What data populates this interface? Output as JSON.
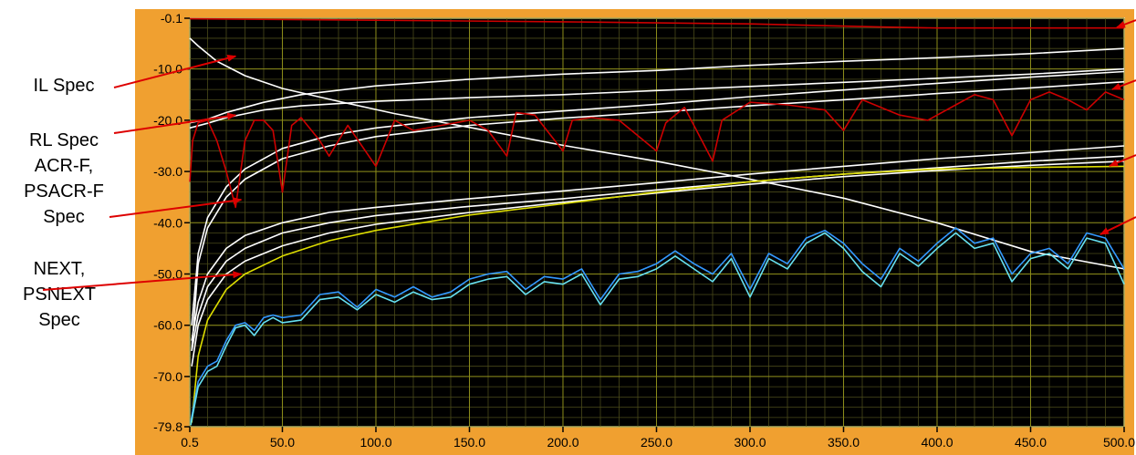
{
  "chart_data": {
    "type": "line",
    "title": "",
    "xlabel": "",
    "ylabel": "",
    "xlim": [
      0.5,
      500.0
    ],
    "ylim": [
      -79.8,
      -0.1
    ],
    "xticks": [
      "0.5",
      "50.0",
      "100.0",
      "150.0",
      "200.0",
      "250.0",
      "300.0",
      "350.0",
      "400.0",
      "450.0",
      "500.0"
    ],
    "yticks": [
      "-0.1",
      "-10.0",
      "-20.0",
      "-30.0",
      "-40.0",
      "-50.0",
      "-60.0",
      "-70.0",
      "-79.8"
    ],
    "annotations": [
      {
        "label": "IL Spec",
        "target": [
          25,
          -7.5
        ]
      },
      {
        "label": "RL Spec",
        "target": [
          25,
          -19.0
        ]
      },
      {
        "label": "ACR-F,\nPSACR-F\nSpec",
        "target": [
          28,
          -35.5
        ]
      },
      {
        "label": "NEXT,\nPSNEXT\nSpec",
        "target": [
          28,
          -50.0
        ]
      }
    ],
    "series": [
      {
        "color": "#ffffff",
        "x": [
          0.5,
          5,
          15,
          30,
          50,
          80,
          110,
          150,
          200,
          250,
          300,
          350,
          400,
          450,
          500
        ],
        "values": [
          -4.0,
          -5.5,
          -8.5,
          -11.3,
          -13.8,
          -16.3,
          -18.7,
          -21.4,
          -24.9,
          -28.0,
          -31.5,
          -35.2,
          -40.0,
          -45.6,
          -49.0
        ]
      },
      {
        "color": "#cc0000",
        "x": [
          0.5,
          100,
          200,
          300,
          370,
          400,
          500
        ],
        "values": [
          -0.2,
          -0.5,
          -0.8,
          -1.2,
          -1.8,
          -2.0,
          -2.0
        ]
      },
      {
        "color": "#ffffff",
        "x": [
          0.5,
          10,
          20,
          40,
          60,
          100,
          150,
          200,
          250,
          300,
          350,
          400,
          450,
          500
        ],
        "values": [
          -20.5,
          -19.8,
          -18.5,
          -16.5,
          -15.0,
          -13.3,
          -12.0,
          -11.0,
          -10.3,
          -9.3,
          -8.5,
          -7.8,
          -7.0,
          -6.0
        ]
      },
      {
        "color": "#ffffff",
        "x": [
          0.5,
          10,
          20,
          40,
          60,
          100,
          150,
          200,
          250,
          300,
          350,
          400,
          450,
          500
        ],
        "values": [
          -21.5,
          -20.6,
          -19.5,
          -18.0,
          -17.2,
          -16.3,
          -15.6,
          -15.0,
          -14.2,
          -13.4,
          -12.6,
          -11.8,
          -11.0,
          -10.0
        ]
      },
      {
        "color": "#ffffff",
        "x": [
          1.5,
          5,
          10,
          20,
          30,
          50,
          75,
          100,
          150,
          200,
          250,
          300,
          350,
          400,
          450,
          500
        ],
        "values": [
          -60.0,
          -46.0,
          -39.0,
          -33.0,
          -29.5,
          -25.5,
          -23.0,
          -21.5,
          -19.5,
          -18.2,
          -16.9,
          -15.4,
          -14.1,
          -12.8,
          -11.6,
          -10.5
        ]
      },
      {
        "color": "#ffffff",
        "x": [
          1.5,
          5,
          10,
          20,
          30,
          50,
          75,
          100,
          150,
          200,
          250,
          300,
          350,
          400,
          450,
          500
        ],
        "values": [
          -65.0,
          -48.0,
          -41.0,
          -35.0,
          -31.5,
          -27.5,
          -25.0,
          -23.2,
          -21.0,
          -19.6,
          -18.4,
          -17.2,
          -16.0,
          -14.8,
          -13.7,
          -12.5
        ]
      },
      {
        "color": "#ffffff",
        "x": [
          1.5,
          5,
          10,
          20,
          30,
          50,
          75,
          100,
          150,
          200,
          250,
          300,
          350,
          400,
          450,
          500
        ],
        "values": [
          -63.0,
          -55.5,
          -50.0,
          -45.0,
          -42.5,
          -40.0,
          -38.0,
          -37.0,
          -35.3,
          -33.8,
          -32.2,
          -30.5,
          -29.0,
          -27.5,
          -26.3,
          -25.0
        ]
      },
      {
        "color": "#ffffff",
        "x": [
          1.5,
          5,
          10,
          20,
          30,
          50,
          75,
          100,
          150,
          200,
          250,
          300,
          350,
          400,
          450,
          500
        ],
        "values": [
          -65.0,
          -58.0,
          -52.5,
          -47.5,
          -45.0,
          -42.0,
          -40.0,
          -38.6,
          -36.8,
          -35.3,
          -33.6,
          -32.0,
          -30.5,
          -29.3,
          -28.0,
          -27.0
        ]
      },
      {
        "color": "#ffffff",
        "x": [
          1.5,
          5,
          10,
          20,
          30,
          50,
          75,
          100,
          150,
          200,
          250,
          300,
          350,
          400,
          450,
          500
        ],
        "values": [
          -68.0,
          -60.0,
          -55.0,
          -50.0,
          -47.5,
          -44.5,
          -42.0,
          -40.3,
          -38.0,
          -36.0,
          -34.2,
          -32.5,
          -31.0,
          -29.8,
          -28.8,
          -28.0
        ]
      },
      {
        "color": "#dddd00",
        "x": [
          1.5,
          5,
          10,
          20,
          30,
          50,
          75,
          100,
          150,
          200,
          250,
          300,
          350,
          400,
          450,
          500
        ],
        "values": [
          -79.0,
          -66.0,
          -59.0,
          -53.0,
          -50.0,
          -46.5,
          -43.5,
          -41.5,
          -38.5,
          -36.3,
          -34.0,
          -32.0,
          -30.5,
          -29.5,
          -29.2,
          -29.0
        ]
      },
      {
        "color": "#cc0000",
        "x": [
          0.5,
          2,
          5,
          10,
          15,
          20,
          25,
          30,
          35,
          40,
          45,
          50,
          55,
          60,
          70,
          75,
          85,
          100,
          110,
          120,
          135,
          150,
          160,
          170,
          175,
          185,
          200,
          205,
          215,
          230,
          250,
          255,
          265,
          280,
          285,
          300,
          320,
          340,
          350,
          360,
          380,
          395,
          410,
          420,
          430,
          440,
          450,
          460,
          470,
          480,
          490,
          500
        ],
        "values": [
          -32.0,
          -24.0,
          -20.5,
          -20.0,
          -24.0,
          -30.0,
          -37.0,
          -24.0,
          -20.0,
          -20.0,
          -22.0,
          -34.0,
          -21.0,
          -19.5,
          -24.0,
          -27.0,
          -21.0,
          -29.0,
          -20.0,
          -22.0,
          -21.0,
          -20.0,
          -22.0,
          -27.0,
          -18.5,
          -19.0,
          -26.0,
          -20.0,
          -19.5,
          -20.0,
          -26.0,
          -20.5,
          -17.5,
          -28.0,
          -20.0,
          -16.5,
          -17.0,
          -18.0,
          -22.0,
          -16.0,
          -19.0,
          -20.0,
          -17.0,
          -15.0,
          -16.0,
          -23.0,
          -16.0,
          -14.5,
          -16.0,
          -18.0,
          -14.5,
          -16.0
        ]
      },
      {
        "color": "#3399ff",
        "x": [
          1.0,
          5,
          10,
          15,
          20,
          25,
          30,
          35,
          40,
          45,
          50,
          60,
          70,
          80,
          90,
          100,
          110,
          120,
          130,
          140,
          150,
          160,
          170,
          180,
          190,
          200,
          210,
          220,
          230,
          240,
          250,
          260,
          270,
          280,
          290,
          300,
          310,
          320,
          330,
          340,
          350,
          360,
          370,
          380,
          390,
          400,
          410,
          420,
          430,
          440,
          450,
          460,
          470,
          480,
          490,
          500
        ],
        "values": [
          -79.0,
          -71.0,
          -68.0,
          -67.0,
          -63.0,
          -60.0,
          -59.5,
          -61.0,
          -58.5,
          -58.0,
          -58.5,
          -58.0,
          -54.0,
          -53.5,
          -56.5,
          -53.0,
          -54.5,
          -52.5,
          -54.5,
          -53.5,
          -51.0,
          -50.0,
          -49.5,
          -53.0,
          -50.5,
          -51.0,
          -49.0,
          -55.0,
          -50.0,
          -49.5,
          -48.0,
          -45.5,
          -48.0,
          -50.0,
          -46.0,
          -53.0,
          -46.0,
          -48.0,
          -43.0,
          -41.5,
          -44.0,
          -48.0,
          -51.0,
          -45.0,
          -47.5,
          -44.0,
          -41.0,
          -44.0,
          -43.0,
          -50.0,
          -46.0,
          -45.0,
          -48.0,
          -42.0,
          -43.0,
          -49.0
        ]
      },
      {
        "color": "#66e0f0",
        "x": [
          1.0,
          5,
          10,
          15,
          20,
          25,
          30,
          35,
          40,
          45,
          50,
          60,
          70,
          80,
          90,
          100,
          110,
          120,
          130,
          140,
          150,
          160,
          170,
          180,
          190,
          200,
          210,
          220,
          230,
          240,
          250,
          260,
          270,
          280,
          290,
          300,
          310,
          320,
          330,
          340,
          350,
          360,
          370,
          380,
          390,
          400,
          410,
          420,
          430,
          440,
          450,
          460,
          470,
          480,
          490,
          500
        ],
        "values": [
          -79.5,
          -72.0,
          -69.0,
          -68.0,
          -64.0,
          -60.5,
          -60.0,
          -62.0,
          -59.5,
          -58.5,
          -59.5,
          -59.0,
          -55.0,
          -54.5,
          -57.0,
          -54.0,
          -55.5,
          -53.5,
          -55.0,
          -54.5,
          -52.0,
          -51.0,
          -50.5,
          -54.0,
          -51.5,
          -52.0,
          -50.0,
          -56.0,
          -51.0,
          -50.5,
          -49.0,
          -46.5,
          -49.0,
          -51.5,
          -47.0,
          -54.5,
          -47.0,
          -49.0,
          -44.0,
          -42.0,
          -45.0,
          -49.5,
          -52.5,
          -46.0,
          -48.5,
          -45.0,
          -42.0,
          -45.0,
          -44.0,
          -51.5,
          -47.0,
          -46.0,
          -49.0,
          -43.0,
          -44.0,
          -52.0
        ]
      }
    ]
  }
}
